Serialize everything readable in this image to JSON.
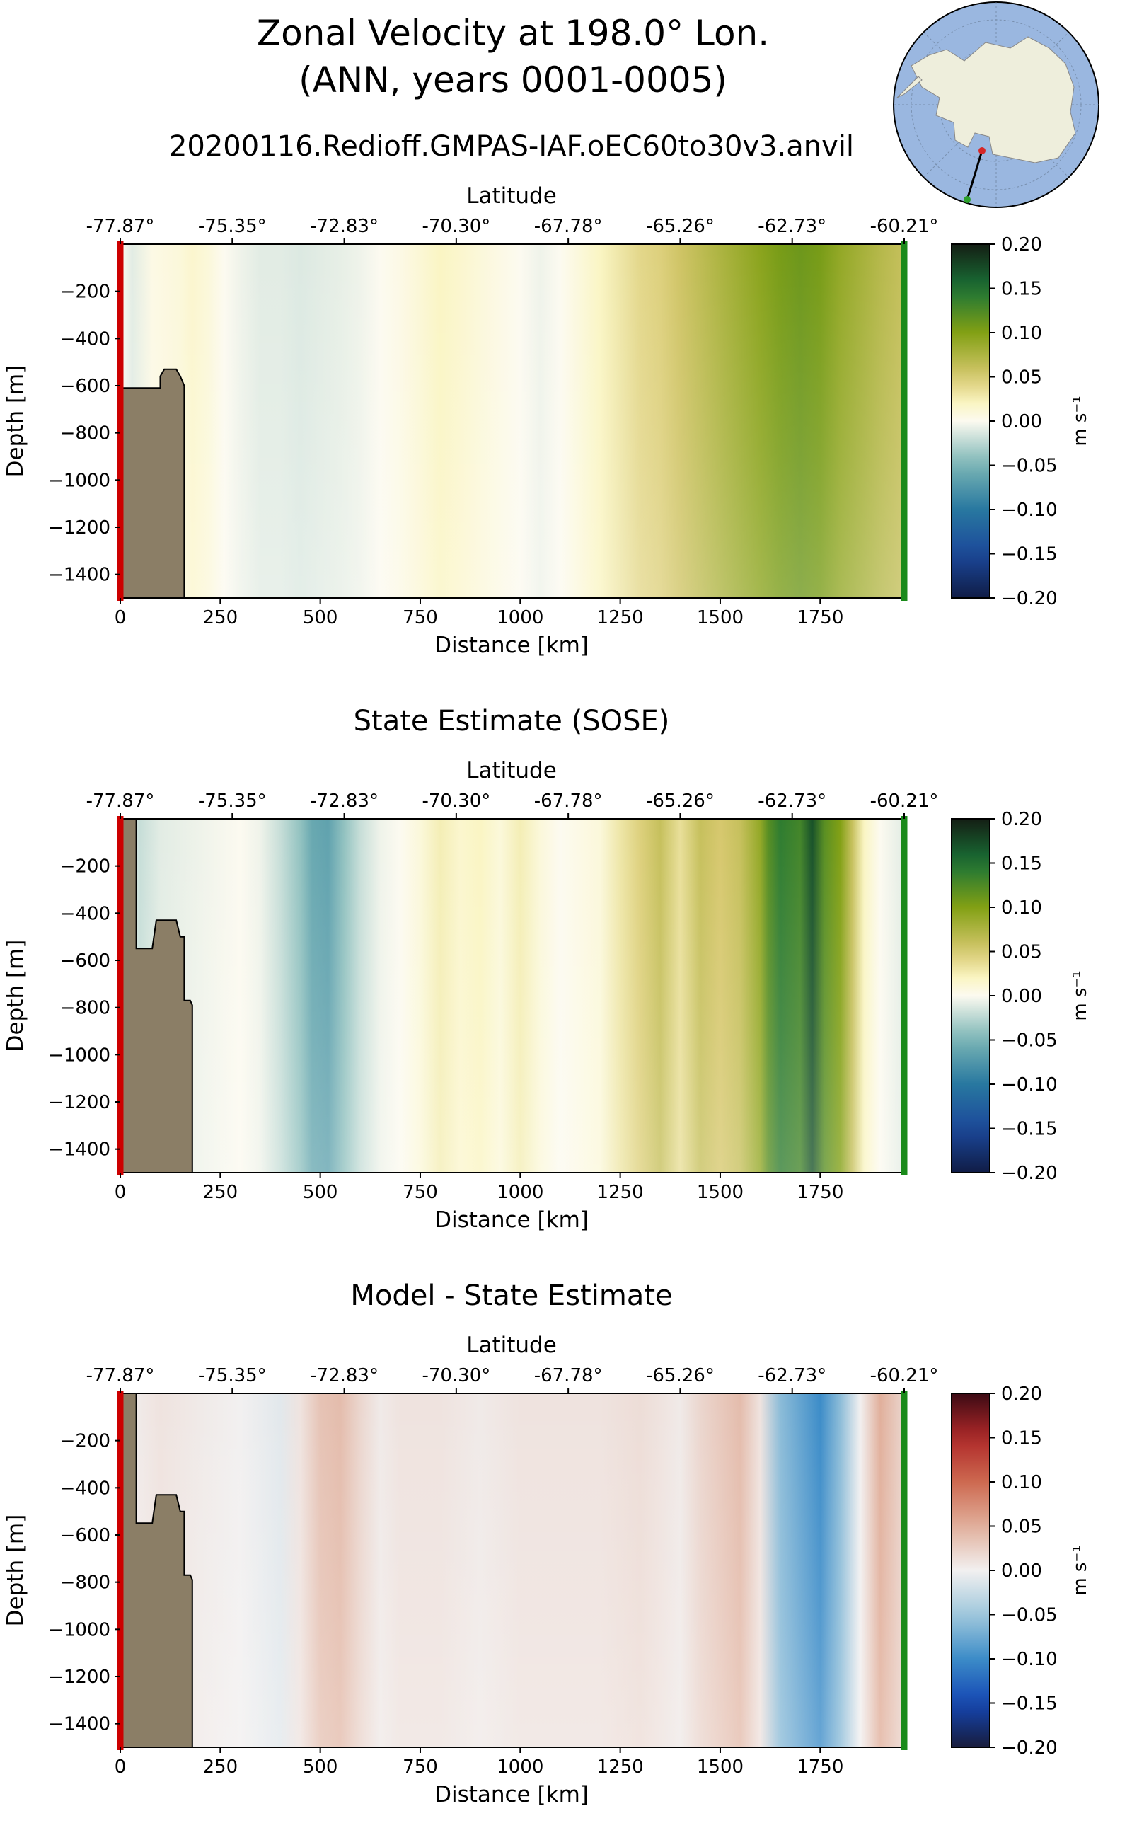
{
  "figure": {
    "title_line1": "Zonal Velocity at 198.0° Lon.",
    "title_line2": "(ANN, years 0001-0005)"
  },
  "inset_map": {
    "description_icon": "antarctica-polar-map-icon",
    "section_start_color": "#d62728",
    "section_end_color": "#2ca02c"
  },
  "colors": {
    "land": "#8b7e66",
    "start_marker": "#cc0000",
    "end_marker": "#1a8a1a"
  },
  "chart_data": [
    {
      "type": "heatmap",
      "title": "20200116.Redioff.GMPAS-IAF.oEC60to30v3.anvil",
      "xlabel": "Distance [km]",
      "ylabel": "Depth [m]",
      "top_axis_label": "Latitude",
      "xlim": [
        0,
        1960
      ],
      "ylim": [
        -1500,
        0
      ],
      "x_ticks": [
        0,
        250,
        500,
        750,
        1000,
        1250,
        1500,
        1750
      ],
      "x_tick_labels": [
        "0",
        "250",
        "500",
        "750",
        "1000",
        "1250",
        "1500",
        "1750"
      ],
      "y_ticks": [
        -200,
        -400,
        -600,
        -800,
        -1000,
        -1200,
        -1400
      ],
      "y_tick_labels": [
        "−200",
        "−400",
        "−600",
        "−800",
        "−1000",
        "−1200",
        "−1400"
      ],
      "top_ticks": [
        0,
        280,
        560,
        840,
        1120,
        1400,
        1680,
        1960
      ],
      "top_tick_labels": [
        "-77.87°",
        "-75.35°",
        "-72.83°",
        "-70.30°",
        "-67.78°",
        "-65.26°",
        "-62.73°",
        "-60.21°"
      ],
      "colorbar": {
        "colormap": "speed",
        "range": [
          -0.2,
          0.2
        ],
        "ticks": [
          0.2,
          0.15,
          0.1,
          0.05,
          0.0,
          -0.05,
          -0.1,
          -0.15,
          -0.2
        ],
        "tick_labels": [
          "0.20",
          "0.15",
          "0.10",
          "0.05",
          "0.00",
          "−0.05",
          "−0.10",
          "−0.15",
          "−0.20"
        ],
        "label": "m s⁻¹"
      },
      "bathymetry": [
        [
          0,
          -610
        ],
        [
          100,
          -610
        ],
        [
          100,
          -560
        ],
        [
          110,
          -530
        ],
        [
          140,
          -530
        ],
        [
          150,
          -560
        ],
        [
          160,
          -600
        ],
        [
          160,
          -1500
        ]
      ],
      "profile_x": [
        0,
        30,
        80,
        150,
        180,
        220,
        260,
        300,
        350,
        400,
        450,
        500,
        550,
        600,
        650,
        700,
        750,
        800,
        850,
        900,
        950,
        1000,
        1050,
        1100,
        1150,
        1200,
        1250,
        1300,
        1350,
        1400,
        1450,
        1500,
        1550,
        1600,
        1650,
        1700,
        1750,
        1800,
        1850,
        1900,
        1960
      ],
      "profile_v": [
        0.0,
        -0.01,
        0.005,
        0.01,
        0.015,
        0.01,
        0.0,
        -0.005,
        -0.01,
        -0.01,
        -0.012,
        -0.01,
        -0.008,
        -0.005,
        0.0,
        0.005,
        0.012,
        0.02,
        0.015,
        0.01,
        0.005,
        0.0,
        -0.005,
        0.0,
        0.01,
        0.02,
        0.03,
        0.04,
        0.045,
        0.055,
        0.065,
        0.075,
        0.085,
        0.095,
        0.105,
        0.11,
        0.105,
        0.09,
        0.08,
        0.07,
        0.06
      ],
      "surface_boost": 0.02
    },
    {
      "type": "heatmap",
      "title": "State Estimate (SOSE)",
      "xlabel": "Distance [km]",
      "ylabel": "Depth [m]",
      "top_axis_label": "Latitude",
      "xlim": [
        0,
        1960
      ],
      "ylim": [
        -1500,
        0
      ],
      "x_ticks": [
        0,
        250,
        500,
        750,
        1000,
        1250,
        1500,
        1750
      ],
      "x_tick_labels": [
        "0",
        "250",
        "500",
        "750",
        "1000",
        "1250",
        "1500",
        "1750"
      ],
      "y_ticks": [
        -200,
        -400,
        -600,
        -800,
        -1000,
        -1200,
        -1400
      ],
      "y_tick_labels": [
        "−200",
        "−400",
        "−600",
        "−800",
        "−1000",
        "−1200",
        "−1400"
      ],
      "top_ticks": [
        0,
        280,
        560,
        840,
        1120,
        1400,
        1680,
        1960
      ],
      "top_tick_labels": [
        "-77.87°",
        "-75.35°",
        "-72.83°",
        "-70.30°",
        "-67.78°",
        "-65.26°",
        "-62.73°",
        "-60.21°"
      ],
      "colorbar": {
        "colormap": "speed",
        "range": [
          -0.2,
          0.2
        ],
        "ticks": [
          0.2,
          0.15,
          0.1,
          0.05,
          0.0,
          -0.05,
          -0.1,
          -0.15,
          -0.2
        ],
        "tick_labels": [
          "0.20",
          "0.15",
          "0.10",
          "0.05",
          "0.00",
          "−0.05",
          "−0.10",
          "−0.15",
          "−0.20"
        ],
        "label": "m s⁻¹"
      },
      "bathymetry": [
        [
          0,
          0
        ],
        [
          40,
          0
        ],
        [
          40,
          -550
        ],
        [
          80,
          -550
        ],
        [
          90,
          -430
        ],
        [
          140,
          -430
        ],
        [
          150,
          -500
        ],
        [
          160,
          -500
        ],
        [
          160,
          -770
        ],
        [
          175,
          -770
        ],
        [
          180,
          -790
        ],
        [
          180,
          -1500
        ]
      ],
      "profile_x": [
        0,
        50,
        100,
        200,
        300,
        350,
        400,
        450,
        480,
        520,
        560,
        600,
        650,
        700,
        750,
        800,
        850,
        900,
        950,
        1000,
        1050,
        1100,
        1150,
        1200,
        1250,
        1300,
        1350,
        1400,
        1450,
        1500,
        1550,
        1600,
        1620,
        1650,
        1700,
        1730,
        1760,
        1800,
        1830,
        1860,
        1900,
        1960
      ],
      "profile_v": [
        0.0,
        -0.02,
        -0.01,
        -0.005,
        0.0,
        -0.005,
        -0.02,
        -0.04,
        -0.06,
        -0.065,
        -0.04,
        -0.02,
        -0.005,
        0.0,
        0.01,
        0.025,
        0.015,
        0.02,
        0.01,
        0.025,
        0.01,
        0.0,
        0.005,
        0.01,
        0.03,
        0.045,
        0.06,
        0.035,
        0.06,
        0.05,
        0.06,
        0.09,
        0.12,
        0.14,
        0.13,
        0.17,
        0.12,
        0.1,
        0.06,
        0.02,
        0.0,
        -0.01
      ],
      "surface_boost": 0.03
    },
    {
      "type": "heatmap",
      "title": "Model - State Estimate",
      "xlabel": "Distance [km]",
      "ylabel": "Depth [m]",
      "top_axis_label": "Latitude",
      "xlim": [
        0,
        1960
      ],
      "ylim": [
        -1500,
        0
      ],
      "x_ticks": [
        0,
        250,
        500,
        750,
        1000,
        1250,
        1500,
        1750
      ],
      "x_tick_labels": [
        "0",
        "250",
        "500",
        "750",
        "1000",
        "1250",
        "1500",
        "1750"
      ],
      "y_ticks": [
        -200,
        -400,
        -600,
        -800,
        -1000,
        -1200,
        -1400
      ],
      "y_tick_labels": [
        "−200",
        "−400",
        "−600",
        "−800",
        "−1000",
        "−1200",
        "−1400"
      ],
      "top_ticks": [
        0,
        280,
        560,
        840,
        1120,
        1400,
        1680,
        1960
      ],
      "top_tick_labels": [
        "-77.87°",
        "-75.35°",
        "-72.83°",
        "-70.30°",
        "-67.78°",
        "-65.26°",
        "-62.73°",
        "-60.21°"
      ],
      "colorbar": {
        "colormap": "balance",
        "range": [
          -0.2,
          0.2
        ],
        "ticks": [
          0.2,
          0.15,
          0.1,
          0.05,
          0.0,
          -0.05,
          -0.1,
          -0.15,
          -0.2
        ],
        "tick_labels": [
          "0.20",
          "0.15",
          "0.10",
          "0.05",
          "0.00",
          "−0.05",
          "−0.10",
          "−0.15",
          "−0.20"
        ],
        "label": "m s⁻¹"
      },
      "bathymetry": [
        [
          0,
          0
        ],
        [
          40,
          0
        ],
        [
          40,
          -550
        ],
        [
          80,
          -550
        ],
        [
          90,
          -430
        ],
        [
          140,
          -430
        ],
        [
          150,
          -500
        ],
        [
          160,
          -500
        ],
        [
          160,
          -770
        ],
        [
          175,
          -770
        ],
        [
          180,
          -790
        ],
        [
          180,
          -1500
        ]
      ],
      "profile_x": [
        0,
        100,
        200,
        300,
        350,
        400,
        450,
        500,
        550,
        600,
        650,
        700,
        800,
        900,
        1000,
        1100,
        1200,
        1300,
        1350,
        1400,
        1450,
        1500,
        1550,
        1600,
        1650,
        1700,
        1750,
        1800,
        1850,
        1900,
        1960
      ],
      "profile_v": [
        0.0,
        0.01,
        0.005,
        0.0,
        -0.005,
        -0.01,
        0.01,
        0.035,
        0.04,
        0.02,
        0.005,
        0.01,
        0.01,
        0.005,
        0.01,
        0.01,
        0.01,
        0.015,
        0.01,
        0.005,
        0.02,
        0.03,
        0.04,
        0.01,
        -0.06,
        -0.08,
        -0.1,
        -0.06,
        0.0,
        0.05,
        0.02
      ],
      "surface_boost": 0.015
    }
  ]
}
